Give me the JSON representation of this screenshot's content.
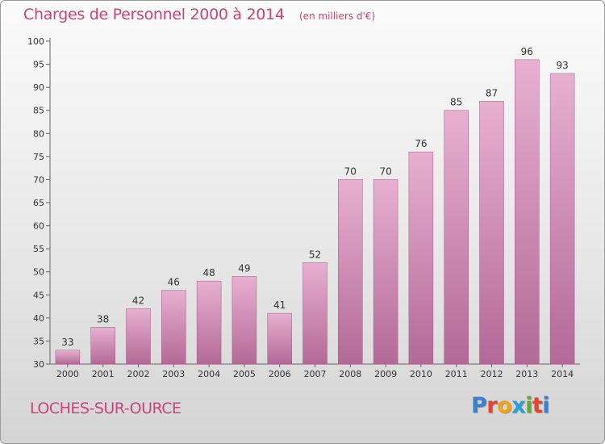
{
  "header": {
    "title": "Charges de Personnel 2000 à 2014",
    "subtitle": "(en milliers d'€)"
  },
  "footer": {
    "place": "LOCHES-SUR-OURCE",
    "logo": "Proxiti",
    "logo_colors": [
      "#3b7fd0",
      "#e8412c",
      "#f0a418",
      "#2a9fd8",
      "#5aae2f",
      "#e8412c",
      "#3b7fd0"
    ]
  },
  "colors": {
    "bar_light": "#e8b0d0",
    "bar_dark": "#b26a96",
    "accent": "#cc4477"
  },
  "chart_data": {
    "type": "bar",
    "categories": [
      "2000",
      "2001",
      "2002",
      "2003",
      "2004",
      "2005",
      "2006",
      "2007",
      "2008",
      "2009",
      "2010",
      "2011",
      "2012",
      "2013",
      "2014"
    ],
    "values": [
      33,
      38,
      42,
      46,
      48,
      49,
      41,
      52,
      70,
      70,
      76,
      85,
      87,
      96,
      93
    ],
    "ylim": [
      30,
      100
    ],
    "yticks": [
      30,
      35,
      40,
      45,
      50,
      55,
      60,
      65,
      70,
      75,
      80,
      85,
      90,
      95,
      100
    ],
    "grid": false,
    "data_labels": true
  }
}
